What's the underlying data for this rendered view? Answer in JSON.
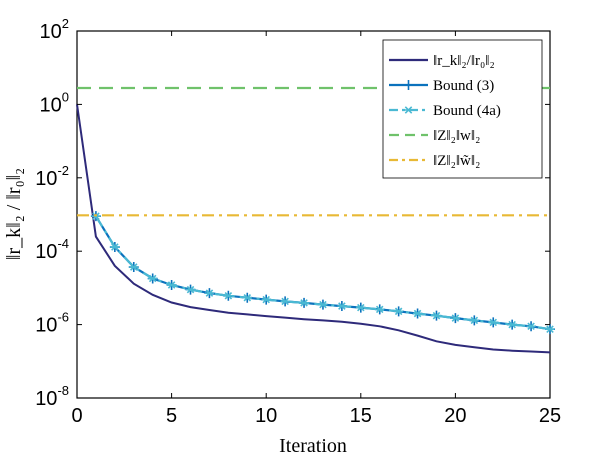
{
  "chart_data": {
    "type": "line",
    "xlabel": "Iteration",
    "ylabel": "‖r_k‖₂ / ‖r₀‖₂",
    "xlim": [
      0,
      25
    ],
    "ylim": [
      1e-08,
      100
    ],
    "yscale": "log",
    "grid": false,
    "legend_position": "top-right",
    "x_ticks": [
      0,
      5,
      10,
      15,
      20,
      25
    ],
    "y_ticks": [
      {
        "base": "10",
        "exp": "-8",
        "value": 1e-08
      },
      {
        "base": "10",
        "exp": "-6",
        "value": 1e-06
      },
      {
        "base": "10",
        "exp": "-4",
        "value": 0.0001
      },
      {
        "base": "10",
        "exp": "-2",
        "value": 0.01
      },
      {
        "base": "10",
        "exp": "0",
        "value": 1
      },
      {
        "base": "10",
        "exp": "2",
        "value": 100
      }
    ],
    "series": [
      {
        "name": "‖r_k‖₂/‖r₀‖₂",
        "color": "#2e2a7a",
        "style": "solid",
        "marker": "none",
        "x": [
          0,
          1,
          2,
          3,
          4,
          5,
          6,
          7,
          8,
          9,
          10,
          11,
          12,
          13,
          14,
          15,
          16,
          17,
          18,
          19,
          20,
          21,
          22,
          23,
          24,
          25
        ],
        "y": [
          1.0,
          0.00025,
          4e-05,
          1.3e-05,
          6.5e-06,
          4e-06,
          3e-06,
          2.5e-06,
          2.1e-06,
          1.9e-06,
          1.7e-06,
          1.55e-06,
          1.4e-06,
          1.3e-06,
          1.2e-06,
          1.05e-06,
          9e-07,
          7e-07,
          5e-07,
          3.5e-07,
          2.8e-07,
          2.4e-07,
          2.1e-07,
          1.95e-07,
          1.85e-07,
          1.75e-07
        ]
      },
      {
        "name": "Bound (3)",
        "color": "#0b72bd",
        "style": "solid",
        "marker": "plus",
        "x": [
          1,
          2,
          3,
          4,
          5,
          6,
          7,
          8,
          9,
          10,
          11,
          12,
          13,
          14,
          15,
          16,
          17,
          18,
          19,
          20,
          21,
          22,
          23,
          24,
          25
        ],
        "y": [
          0.0009,
          0.00013,
          3.7e-05,
          1.8e-05,
          1.2e-05,
          9e-06,
          7.2e-06,
          6.1e-06,
          5.4e-06,
          4.8e-06,
          4.3e-06,
          3.9e-06,
          3.5e-06,
          3.2e-06,
          2.9e-06,
          2.6e-06,
          2.3e-06,
          2e-06,
          1.75e-06,
          1.5e-06,
          1.3e-06,
          1.15e-06,
          1e-06,
          9e-07,
          7.5e-07
        ]
      },
      {
        "name": "Bound (4a)",
        "color": "#4ab9d3",
        "style": "dashdot",
        "marker": "asterisk",
        "x": [
          1,
          2,
          3,
          4,
          5,
          6,
          7,
          8,
          9,
          10,
          11,
          12,
          13,
          14,
          15,
          16,
          17,
          18,
          19,
          20,
          21,
          22,
          23,
          24,
          25
        ],
        "y": [
          0.0009,
          0.00013,
          3.7e-05,
          1.8e-05,
          1.2e-05,
          9e-06,
          7.2e-06,
          6.1e-06,
          5.4e-06,
          4.8e-06,
          4.3e-06,
          3.9e-06,
          3.5e-06,
          3.2e-06,
          2.9e-06,
          2.6e-06,
          2.3e-06,
          2e-06,
          1.75e-06,
          1.5e-06,
          1.3e-06,
          1.15e-06,
          1e-06,
          9e-07,
          7.5e-07
        ]
      },
      {
        "name": "‖Z‖₂‖w‖₂",
        "color": "#6fc26b",
        "style": "dashed",
        "marker": "none",
        "x": [
          0,
          25
        ],
        "y": [
          2.8,
          2.8
        ]
      },
      {
        "name": "‖Z‖₂‖w̃‖₂",
        "color": "#e8b935",
        "style": "dashdot",
        "marker": "none",
        "x": [
          0,
          25
        ],
        "y": [
          0.00095,
          0.00095
        ]
      }
    ]
  }
}
